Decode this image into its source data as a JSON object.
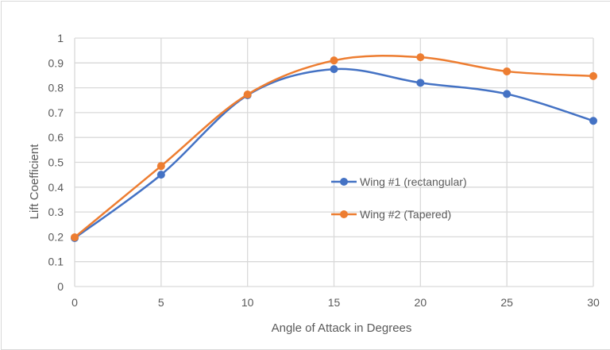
{
  "chart_data": {
    "type": "line",
    "title": "",
    "xlabel": "Angle of Attack in Degrees",
    "ylabel": "Lift Coefficient",
    "x": [
      0,
      5,
      10,
      15,
      20,
      25,
      30
    ],
    "xlim": [
      0,
      30
    ],
    "ylim": [
      0,
      1
    ],
    "xticks": [
      "0",
      "5",
      "10",
      "15",
      "20",
      "25",
      "30"
    ],
    "yticks": [
      "0",
      "0.1",
      "0.2",
      "0.3",
      "0.4",
      "0.5",
      "0.6",
      "0.7",
      "0.8",
      "0.9",
      "1"
    ],
    "grid": true,
    "smooth": true,
    "legend_position": "inside-center-right",
    "series": [
      {
        "name": "Wing #1 (rectangular)",
        "color": "#4472C4",
        "values": [
          0.195,
          0.45,
          0.77,
          0.875,
          0.82,
          0.775,
          0.667
        ]
      },
      {
        "name": "Wing #2 (Tapered)",
        "color": "#ED7D31",
        "values": [
          0.198,
          0.485,
          0.773,
          0.91,
          0.923,
          0.866,
          0.847
        ]
      }
    ]
  },
  "colors": {
    "grid": "#d9d9d9",
    "text": "#595959",
    "series1": "#4472C4",
    "series2": "#ED7D31"
  }
}
